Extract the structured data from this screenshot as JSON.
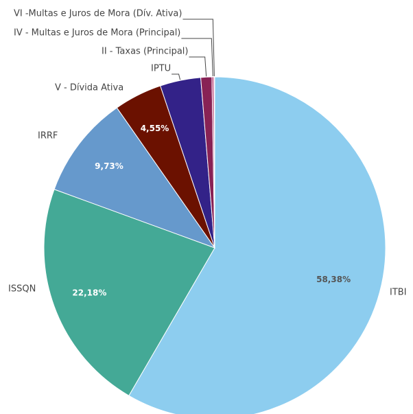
{
  "chart_data": {
    "type": "pie",
    "categories": [
      "ITBI",
      "ISSQN",
      "IRRF",
      "V - Dívida Ativa",
      "IPTU",
      "II - Taxas (Principal)",
      "IV - Multas e Juros de Mora (Principal)",
      "VI -Multas e Juros de Mora (Dív. Ativa)"
    ],
    "values": [
      58.38,
      22.18,
      9.73,
      4.55,
      3.85,
      1.05,
      0.18,
      0.08
    ],
    "value_labels": [
      "58,38%",
      "22,18%",
      "9,73%",
      "4,55%",
      null,
      null,
      null,
      null
    ],
    "colors": [
      "#8dcdef",
      "#44a996",
      "#6699cc",
      "#6b1100",
      "#332288",
      "#882255",
      "#bb4477",
      "#dd99bb"
    ]
  }
}
